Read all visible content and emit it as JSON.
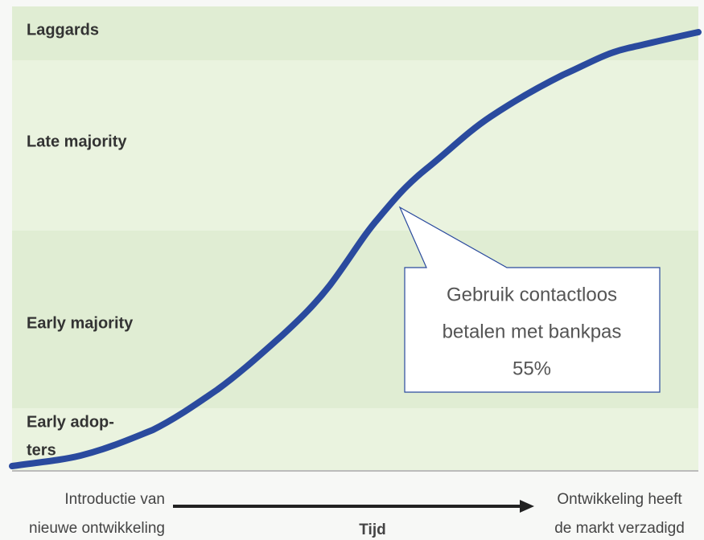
{
  "bands": [
    {
      "label": [
        "Laggards"
      ]
    },
    {
      "label": [
        "Late majority"
      ]
    },
    {
      "label": [
        "Early majority"
      ]
    },
    {
      "label": [
        "Early adop-",
        "ters"
      ]
    }
  ],
  "callout": {
    "lines": [
      "Gebruik contactloos",
      "betalen met bankpas",
      "55%"
    ]
  },
  "axis": {
    "start": [
      "Introductie van",
      "nieuwe ontwikkeling"
    ],
    "label": "Tijd",
    "end": [
      "Ontwikkeling heeft",
      "de markt verzadigd"
    ]
  }
}
